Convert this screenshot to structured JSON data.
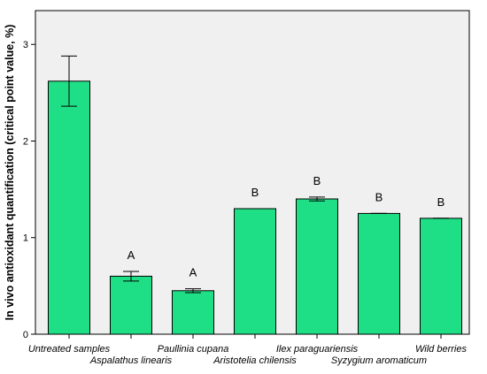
{
  "chart_data": {
    "type": "bar",
    "title": "",
    "xlabel": "",
    "ylabel": "In vivo antioxidant quantification (critical point value, %)",
    "ylim": [
      0,
      3.35
    ],
    "yticks": [
      0,
      1,
      2,
      3
    ],
    "grid": false,
    "categories": [
      "Untreated samples",
      "Aspalathus linearis",
      "Paullinia cupana",
      "Aristotelia chilensis",
      "Ilex paraguariensis",
      "Syzygium aromaticum",
      "Wild berries"
    ],
    "values": [
      2.62,
      0.6,
      0.45,
      1.3,
      1.4,
      1.25,
      1.2
    ],
    "error_low": [
      2.36,
      0.55,
      0.43,
      1.3,
      1.38,
      1.25,
      1.2
    ],
    "error_high": [
      2.88,
      0.65,
      0.47,
      1.3,
      1.42,
      1.25,
      1.2
    ],
    "group_labels": [
      "",
      "A",
      "A",
      "B",
      "B",
      "B",
      "B"
    ],
    "colors": {
      "bar_fill": "#1fdf86",
      "bar_stroke": "#000000",
      "plot_background": "#f0f0f0",
      "axis": "#000000"
    }
  }
}
